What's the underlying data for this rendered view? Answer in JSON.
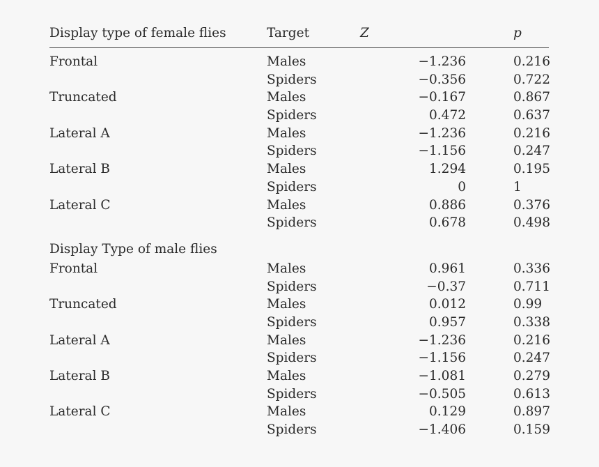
{
  "table": {
    "headers": {
      "group": "Display type of female flies",
      "target": "Target",
      "z": "Z",
      "p": "p"
    },
    "sections": [
      {
        "label": "",
        "groups": [
          {
            "name": "Frontal",
            "rows": [
              {
                "target": "Males",
                "z": "−1.236",
                "p": "0.216"
              },
              {
                "target": "Spiders",
                "z": "−0.356",
                "p": "0.722"
              }
            ]
          },
          {
            "name": "Truncated",
            "rows": [
              {
                "target": "Males",
                "z": "−0.167",
                "p": "0.867"
              },
              {
                "target": "Spiders",
                "z": "0.472",
                "p": "0.637"
              }
            ]
          },
          {
            "name": "Lateral A",
            "rows": [
              {
                "target": "Males",
                "z": "−1.236",
                "p": "0.216"
              },
              {
                "target": "Spiders",
                "z": "−1.156",
                "p": "0.247"
              }
            ]
          },
          {
            "name": "Lateral B",
            "rows": [
              {
                "target": "Males",
                "z": "1.294",
                "p": "0.195"
              },
              {
                "target": "Spiders",
                "z": "0",
                "p": "1"
              }
            ]
          },
          {
            "name": "Lateral C",
            "rows": [
              {
                "target": "Males",
                "z": "0.886",
                "p": "0.376"
              },
              {
                "target": "Spiders",
                "z": "0.678",
                "p": "0.498"
              }
            ]
          }
        ]
      },
      {
        "label": "Display Type of male flies",
        "groups": [
          {
            "name": "Frontal",
            "rows": [
              {
                "target": "Males",
                "z": "0.961",
                "p": "0.336"
              },
              {
                "target": "Spiders",
                "z": "−0.37",
                "p": "0.711"
              }
            ]
          },
          {
            "name": "Truncated",
            "rows": [
              {
                "target": "Males",
                "z": "0.012",
                "p": "0.99"
              },
              {
                "target": "Spiders",
                "z": "0.957",
                "p": "0.338"
              }
            ]
          },
          {
            "name": "Lateral A",
            "rows": [
              {
                "target": "Males",
                "z": "−1.236",
                "p": "0.216"
              },
              {
                "target": "Spiders",
                "z": "−1.156",
                "p": "0.247"
              }
            ]
          },
          {
            "name": "Lateral B",
            "rows": [
              {
                "target": "Males",
                "z": "−1.081",
                "p": "0.279"
              },
              {
                "target": "Spiders",
                "z": "−0.505",
                "p": "0.613"
              }
            ]
          },
          {
            "name": "Lateral C",
            "rows": [
              {
                "target": "Males",
                "z": "0.129",
                "p": "0.897"
              },
              {
                "target": "Spiders",
                "z": "−1.406",
                "p": "0.159"
              }
            ]
          }
        ]
      }
    ]
  }
}
